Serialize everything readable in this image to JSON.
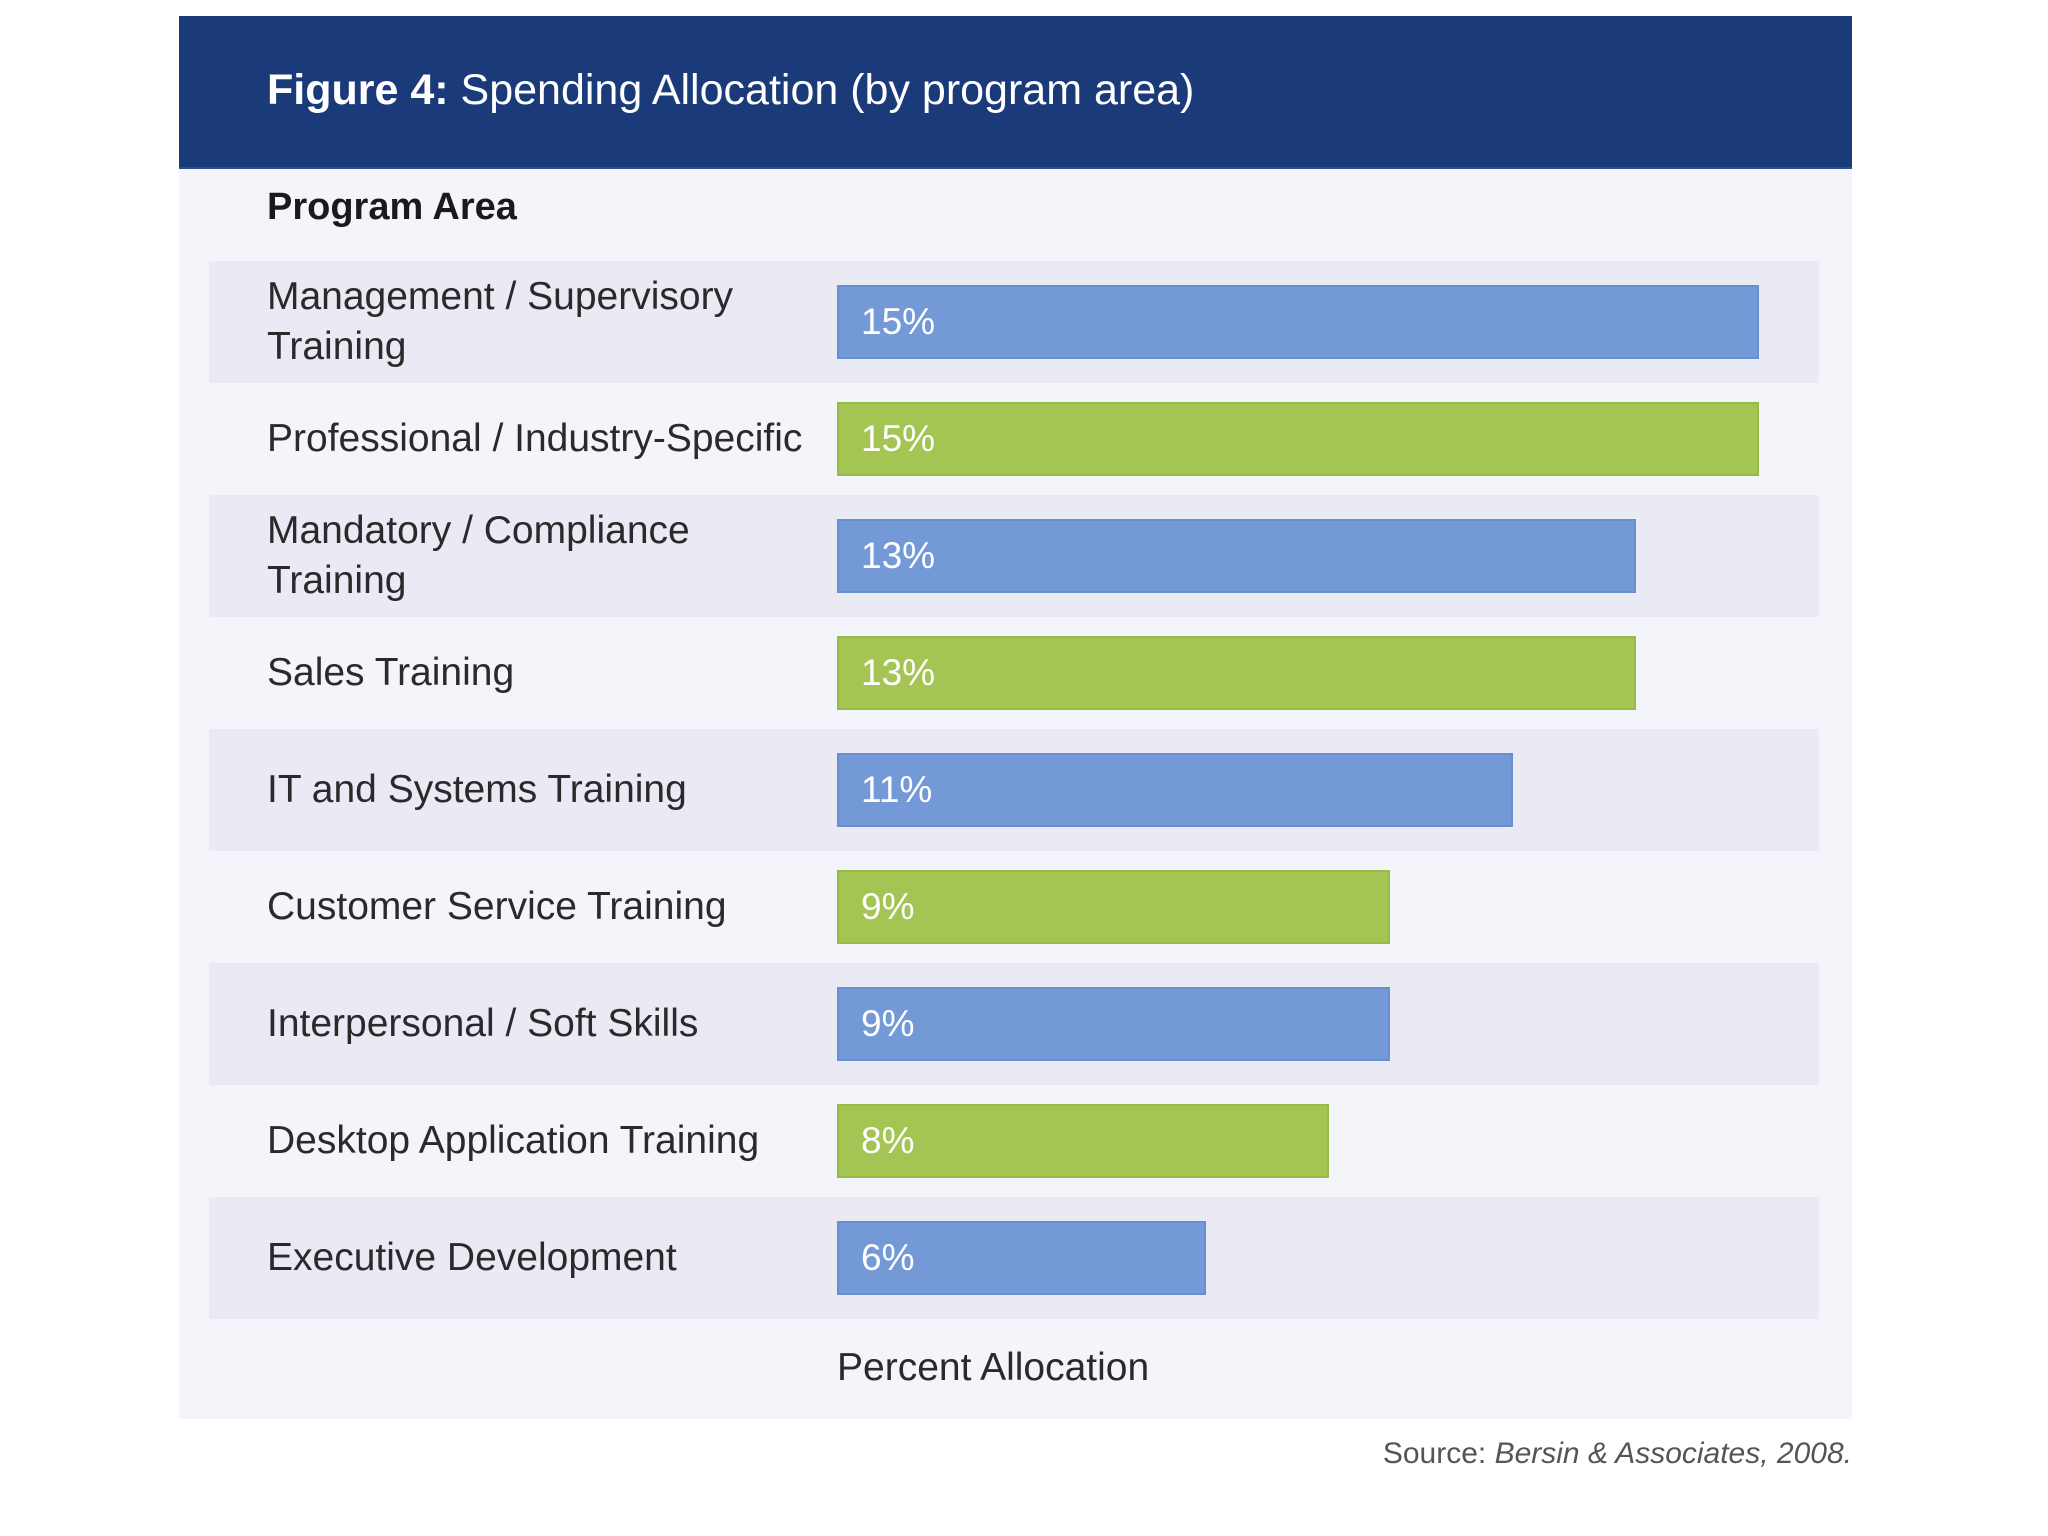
{
  "header": {
    "figure_label": "Figure 4:",
    "title": "Spending Allocation (by program area)"
  },
  "column_header": "Program Area",
  "axis_label": "Percent Allocation",
  "source": {
    "prefix": "Source:",
    "name": "Bersin & Associates, 2008."
  },
  "colors": {
    "header_bg": "#1b3a7a",
    "blue_bar": "#7399d7",
    "green_bar": "#a4c553",
    "panel_bg": "#f4f5fa",
    "stripe_bg": "#e9eaf4"
  },
  "chart_data": {
    "type": "bar",
    "orientation": "horizontal",
    "title": "Spending Allocation (by program area)",
    "xlabel": "Percent Allocation",
    "ylabel": "Program Area",
    "xlim": [
      0,
      15
    ],
    "categories": [
      "Management / Supervisory Training",
      "Professional / Industry-Specific",
      "Mandatory / Compliance Training",
      "Sales Training",
      "IT and Systems Training",
      "Customer Service Training",
      "Interpersonal / Soft Skills",
      "Desktop Application Training",
      "Executive Development"
    ],
    "values": [
      15,
      15,
      13,
      13,
      11,
      9,
      9,
      8,
      6
    ],
    "value_labels": [
      "15%",
      "15%",
      "13%",
      "13%",
      "11%",
      "9%",
      "9%",
      "8%",
      "6%"
    ],
    "bar_colors": [
      "blue",
      "green",
      "blue",
      "green",
      "blue",
      "green",
      "blue",
      "green",
      "blue"
    ]
  }
}
